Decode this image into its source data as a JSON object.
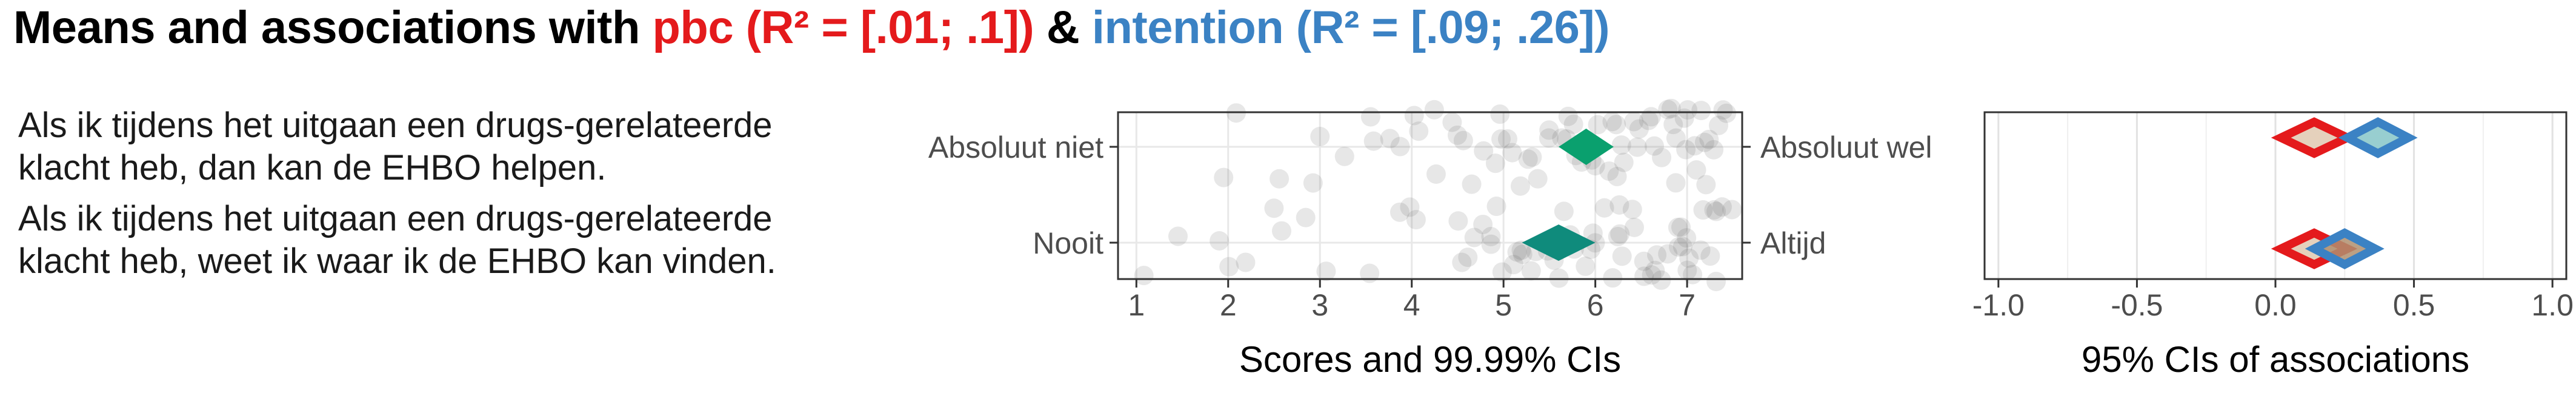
{
  "title": {
    "prefix": "Means and associations with ",
    "pbc": "pbc (R² = [.01; .1])",
    "amp": " & ",
    "intention": "intention (R² = [.09; .26])"
  },
  "items": [
    {
      "line1": "Als ik tijdens het uitgaan een drugs-gerelateerde",
      "line2": "klacht heb, dan kan de EHBO helpen."
    },
    {
      "line1": "Als ik tijdens het uitgaan een drugs-gerelateerde",
      "line2": "klacht heb, weet ik waar ik de EHBO kan vinden."
    }
  ],
  "colors": {
    "pbc": "#e41a1c",
    "intention": "#3b82c4",
    "mean1": "#0aa06e",
    "mean2": "#0f8b7c",
    "points": "#555555"
  },
  "chart_data": [
    {
      "type": "scatter",
      "title": "",
      "xlabel": "Scores and 99.99% CIs",
      "ylabel": "",
      "xlim": [
        0.8,
        7.6
      ],
      "xticks": [
        1,
        2,
        3,
        4,
        5,
        6,
        7
      ],
      "grid": true,
      "rows": [
        {
          "left_label": "Absoluut niet",
          "right_label": "Absoluut wel",
          "mean": 5.9,
          "ci": [
            5.6,
            6.2
          ],
          "points": [
            1.9,
            2.1,
            2.6,
            3.0,
            3.3,
            3.5,
            3.8,
            3.9,
            4.0,
            4.1,
            4.2,
            4.4,
            4.6,
            4.8,
            4.9,
            5.0,
            5.1,
            5.2,
            5.3,
            5.4,
            5.5,
            5.6,
            5.7,
            5.8,
            5.9,
            6.0,
            6.1,
            6.2,
            6.3,
            6.4,
            6.5,
            6.6,
            6.7,
            6.8,
            6.9,
            7.0,
            7.1,
            7.2,
            7.3,
            7.4,
            4.3,
            4.7,
            5.25,
            5.75,
            6.15,
            6.55,
            6.95,
            7.05,
            7.15,
            7.25,
            7.35,
            6.85,
            6.45,
            6.05,
            5.65,
            5.15,
            4.55,
            3.6,
            2.9,
            4.95,
            5.45,
            5.95,
            6.25,
            6.75,
            7.45,
            7.0,
            7.2,
            6.9,
            6.6,
            6.3
          ]
        },
        {
          "left_label": "Nooit",
          "right_label": "Altijd",
          "mean": 5.6,
          "ci": [
            5.2,
            6.0
          ],
          "points": [
            1.1,
            1.5,
            1.9,
            2.0,
            2.2,
            2.5,
            2.6,
            2.9,
            3.1,
            3.6,
            4.0,
            4.1,
            4.5,
            4.6,
            4.7,
            4.8,
            4.9,
            5.0,
            5.1,
            5.2,
            5.3,
            5.4,
            5.5,
            5.6,
            5.7,
            5.8,
            5.9,
            6.0,
            6.1,
            6.2,
            6.3,
            6.4,
            6.5,
            6.6,
            6.7,
            6.8,
            6.9,
            7.0,
            7.1,
            7.2,
            7.3,
            7.4,
            4.85,
            5.25,
            5.75,
            6.15,
            6.55,
            6.95,
            7.05,
            7.15,
            7.25,
            7.35,
            6.85,
            6.45,
            6.05,
            5.65,
            5.15,
            4.55,
            3.9,
            4.95,
            5.45,
            5.95,
            6.25,
            6.75,
            7.45,
            7.0,
            7.2,
            6.9,
            6.6,
            6.3
          ]
        }
      ]
    },
    {
      "type": "scatter",
      "title": "",
      "xlabel": "95% CIs of associations",
      "ylabel": "",
      "xlim": [
        -1.05,
        1.05
      ],
      "xticks": [
        -1.0,
        -0.5,
        0.0,
        0.5,
        1.0
      ],
      "xticklabels": [
        "-1.0",
        "-0.5",
        "0.0",
        "0.5",
        "1.0"
      ],
      "grid": true,
      "series": [
        {
          "name": "pbc",
          "rows": [
            {
              "estimate": 0.14,
              "ci": [
                0.02,
                0.26
              ]
            },
            {
              "estimate": 0.14,
              "ci": [
                0.02,
                0.26
              ]
            }
          ]
        },
        {
          "name": "intention",
          "rows": [
            {
              "estimate": 0.37,
              "ci": [
                0.26,
                0.48
              ]
            },
            {
              "estimate": 0.25,
              "ci": [
                0.14,
                0.36
              ]
            }
          ]
        }
      ]
    }
  ]
}
